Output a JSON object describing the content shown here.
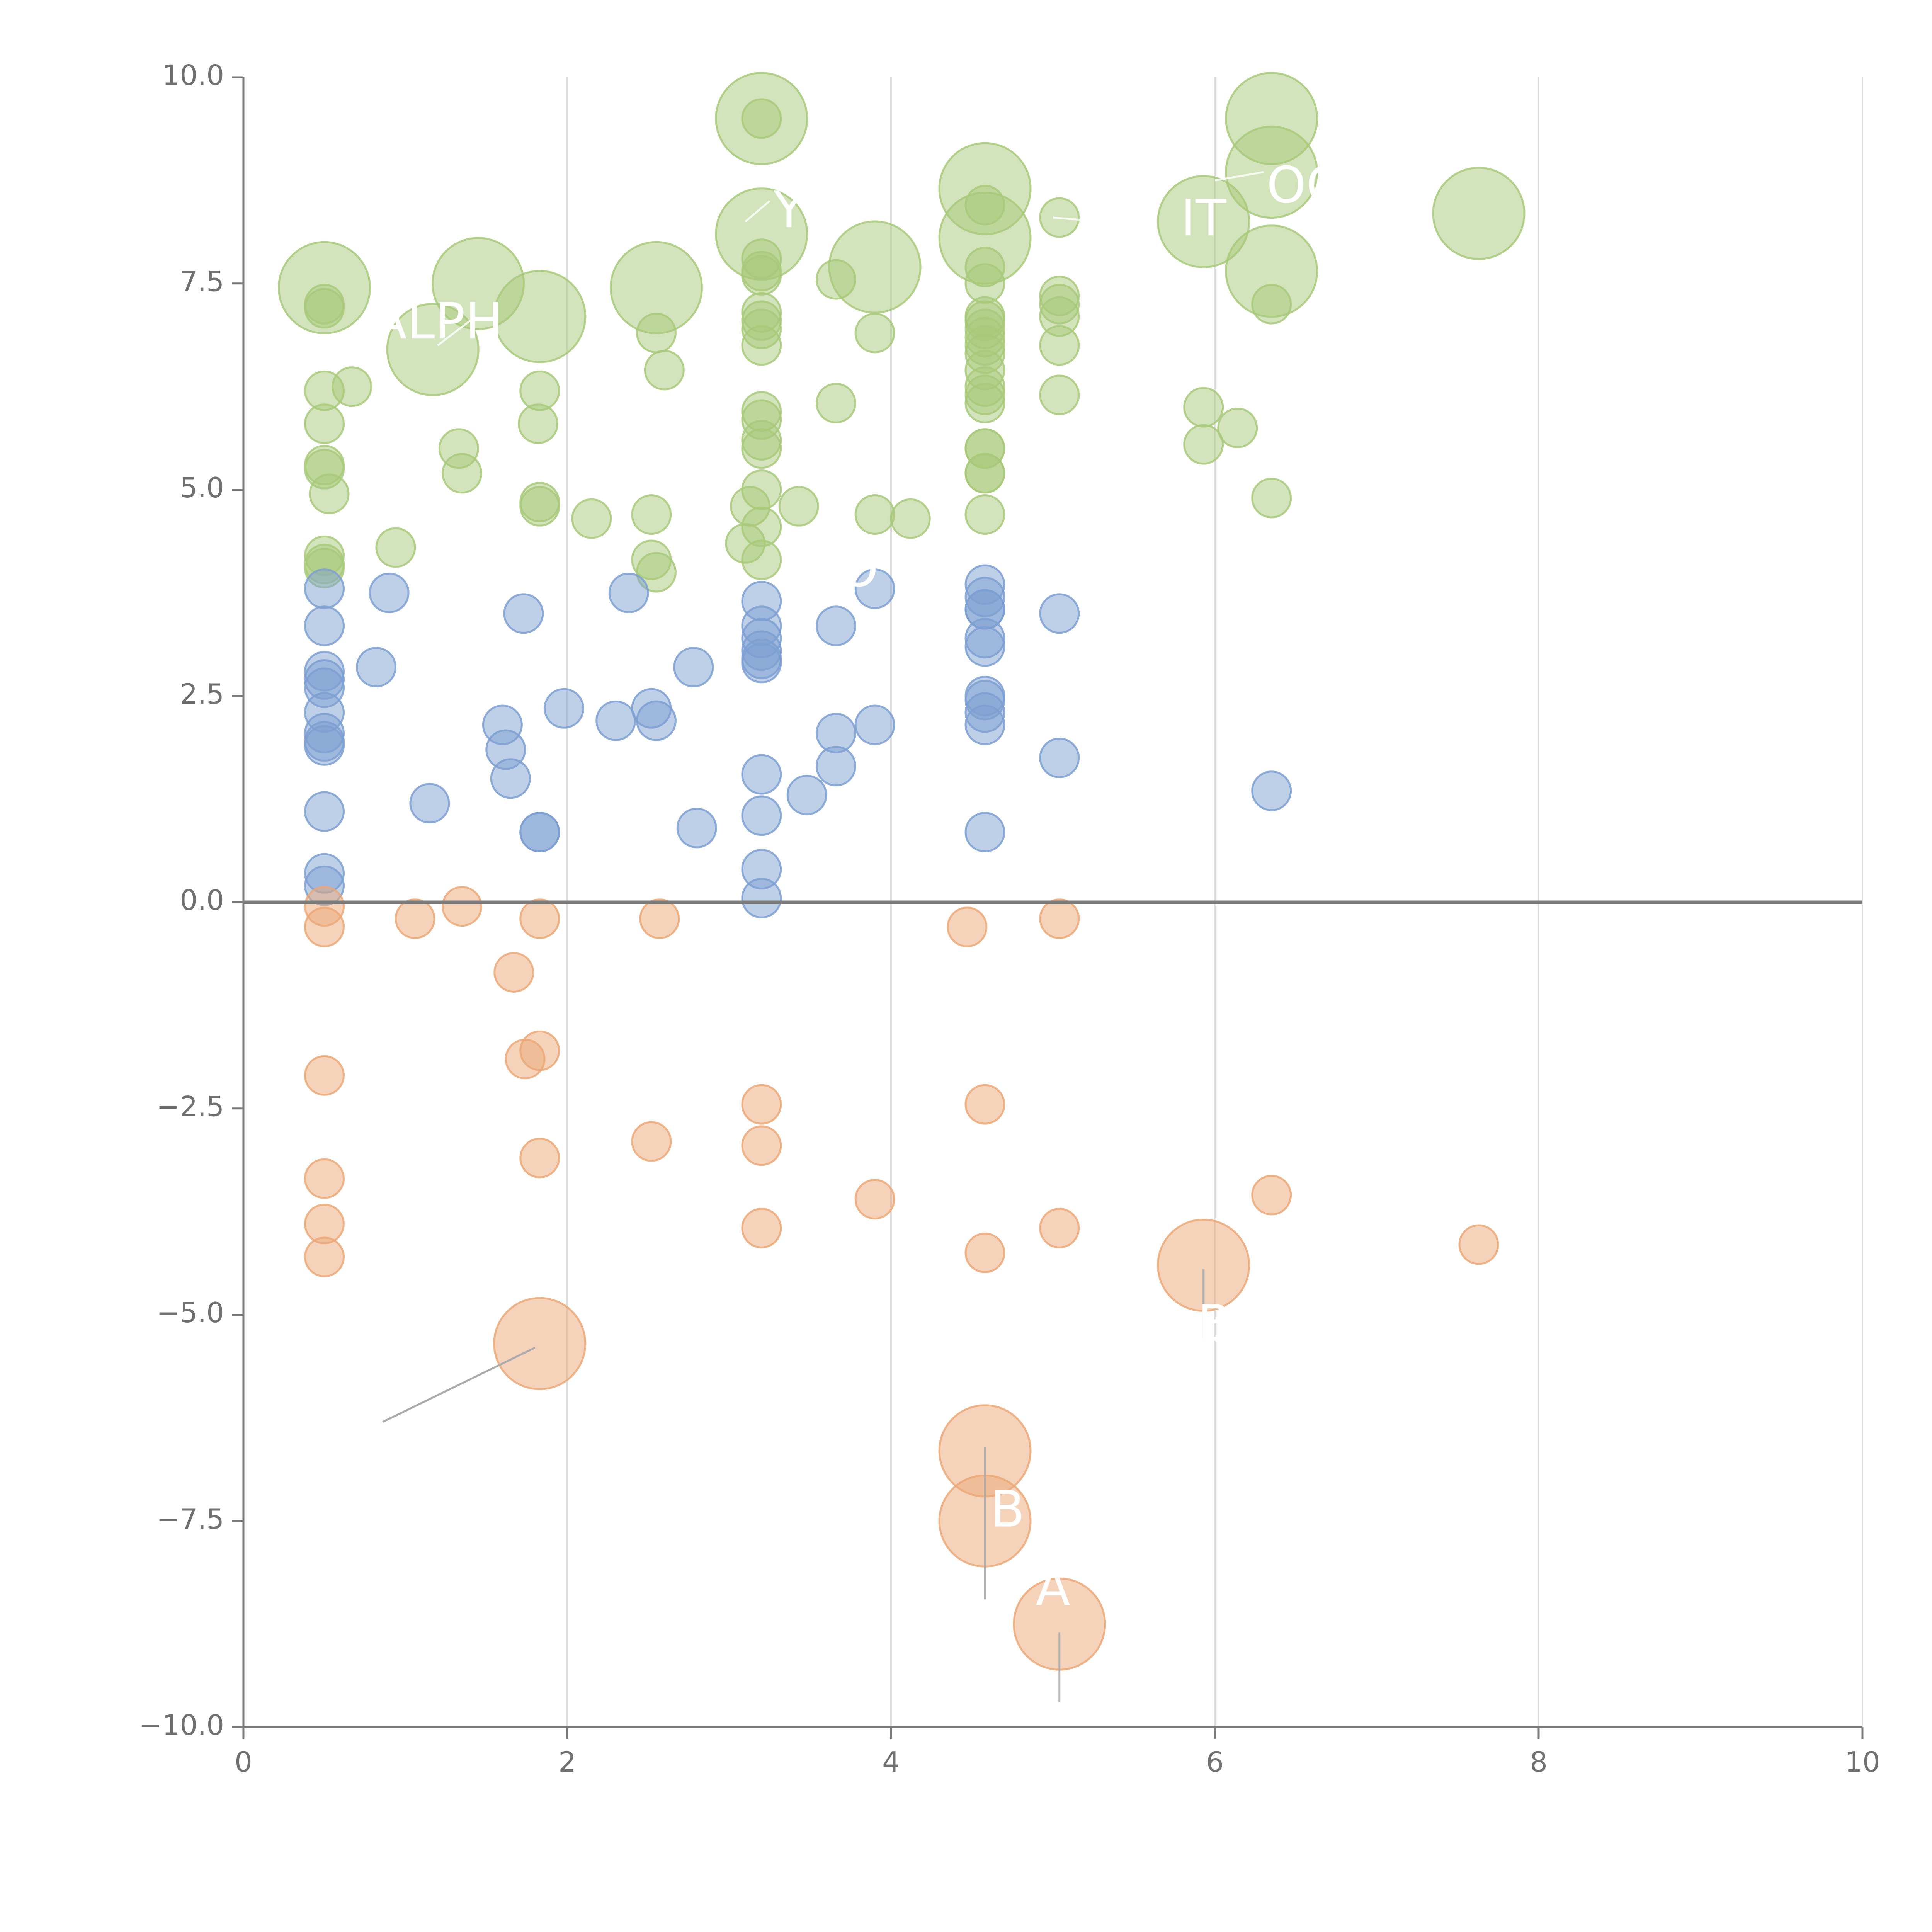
{
  "chart_data": {
    "type": "scatter",
    "title": "",
    "xlabel": "",
    "ylabel": "",
    "xlim": [
      0,
      10
    ],
    "ylim": [
      -10,
      10
    ],
    "x_ticks": [
      0,
      2,
      4,
      6,
      8,
      10
    ],
    "x_tick_labels": [
      "0",
      "2",
      "4",
      "6",
      "8",
      "10"
    ],
    "y_ticks": [
      -10,
      -7.5,
      -5,
      -2.5,
      0,
      2.5,
      5,
      7.5,
      10
    ],
    "y_tick_labels": [
      "−10.0",
      "−7.5",
      "−5.0",
      "−2.5",
      "0.0",
      "2.5",
      "5.0",
      "7.5",
      "10.0"
    ],
    "grid": "vertical",
    "zero_line": true,
    "colors": {
      "positive-high": "#a8c97a",
      "positive-low": "#7d9fd1",
      "negative": "#eba877",
      "axis": "#7a7a7a",
      "grid": "#dddddd",
      "leader_light": "#ffffff",
      "leader_dark": "#aaaaaa"
    },
    "series": [
      {
        "name": "positive-high",
        "points": [
          [
            0.5,
            7.45,
            2
          ],
          [
            0.5,
            7.2,
            1
          ],
          [
            0.5,
            7.25,
            1
          ],
          [
            0.5,
            6.2,
            1
          ],
          [
            0.5,
            5.8,
            1
          ],
          [
            0.5,
            5.3,
            1
          ],
          [
            0.5,
            5.25,
            1
          ],
          [
            0.53,
            4.95,
            1
          ],
          [
            0.5,
            4.2,
            1
          ],
          [
            0.5,
            4.1,
            1
          ],
          [
            0.5,
            4.05,
            1
          ],
          [
            0.67,
            6.25,
            1
          ],
          [
            0.94,
            4.3,
            1
          ],
          [
            1.17,
            6.7,
            2
          ],
          [
            1.45,
            7.5,
            2
          ],
          [
            1.33,
            5.5,
            1
          ],
          [
            1.35,
            5.2,
            1
          ],
          [
            1.83,
            7.1,
            2
          ],
          [
            1.83,
            6.2,
            1
          ],
          [
            1.82,
            5.8,
            1
          ],
          [
            1.83,
            4.85,
            1
          ],
          [
            1.83,
            4.8,
            1
          ],
          [
            2.15,
            4.65,
            1
          ],
          [
            2.55,
            7.45,
            2
          ],
          [
            2.55,
            6.9,
            1
          ],
          [
            2.6,
            6.45,
            1
          ],
          [
            2.52,
            4.7,
            1
          ],
          [
            2.52,
            4.15,
            1
          ],
          [
            2.55,
            4.0,
            1
          ],
          [
            3.2,
            9.5,
            2
          ],
          [
            3.2,
            9.5,
            1
          ],
          [
            3.2,
            8.1,
            2
          ],
          [
            3.2,
            7.8,
            1
          ],
          [
            3.2,
            7.65,
            1
          ],
          [
            3.2,
            7.6,
            1
          ],
          [
            3.2,
            7.15,
            1
          ],
          [
            3.2,
            7.05,
            1
          ],
          [
            3.2,
            6.95,
            1
          ],
          [
            3.2,
            6.75,
            1
          ],
          [
            3.2,
            5.95,
            1
          ],
          [
            3.2,
            5.85,
            1
          ],
          [
            3.2,
            5.6,
            1
          ],
          [
            3.2,
            5.5,
            1
          ],
          [
            3.2,
            5.0,
            1
          ],
          [
            3.13,
            4.8,
            1
          ],
          [
            3.2,
            4.55,
            1
          ],
          [
            3.1,
            4.35,
            1
          ],
          [
            3.2,
            4.15,
            1
          ],
          [
            3.43,
            4.8,
            1
          ],
          [
            3.66,
            7.55,
            1
          ],
          [
            3.66,
            6.05,
            1
          ],
          [
            3.9,
            7.7,
            2
          ],
          [
            3.9,
            6.9,
            1
          ],
          [
            3.9,
            4.7,
            1
          ],
          [
            4.12,
            4.65,
            1
          ],
          [
            4.58,
            8.65,
            2
          ],
          [
            4.58,
            8.05,
            2
          ],
          [
            4.58,
            8.45,
            1
          ],
          [
            4.58,
            7.7,
            1
          ],
          [
            4.58,
            7.5,
            1
          ],
          [
            4.58,
            7.1,
            1
          ],
          [
            4.58,
            7.05,
            1
          ],
          [
            4.58,
            6.95,
            1
          ],
          [
            4.58,
            6.85,
            1
          ],
          [
            4.58,
            6.75,
            1
          ],
          [
            4.58,
            6.65,
            1
          ],
          [
            4.58,
            6.45,
            1
          ],
          [
            4.58,
            6.25,
            1
          ],
          [
            4.58,
            6.15,
            1
          ],
          [
            4.58,
            6.05,
            1
          ],
          [
            4.58,
            5.5,
            1
          ],
          [
            4.58,
            5.5,
            1
          ],
          [
            4.58,
            5.2,
            1
          ],
          [
            4.58,
            5.2,
            1
          ],
          [
            4.58,
            4.7,
            1
          ],
          [
            5.04,
            8.3,
            1
          ],
          [
            5.04,
            7.35,
            1
          ],
          [
            5.04,
            7.25,
            1
          ],
          [
            5.04,
            7.1,
            1
          ],
          [
            5.04,
            6.75,
            1
          ],
          [
            5.04,
            6.15,
            1
          ],
          [
            5.93,
            8.25,
            2
          ],
          [
            5.93,
            6.0,
            1
          ],
          [
            5.93,
            5.55,
            1
          ],
          [
            6.14,
            5.75,
            1
          ],
          [
            6.35,
            9.5,
            2
          ],
          [
            6.35,
            8.85,
            2
          ],
          [
            6.35,
            7.65,
            2
          ],
          [
            6.35,
            7.25,
            1
          ],
          [
            6.35,
            4.9,
            1
          ],
          [
            7.63,
            8.35,
            2
          ]
        ]
      },
      {
        "name": "positive-low",
        "points": [
          [
            0.5,
            3.8,
            1
          ],
          [
            0.5,
            3.35,
            1
          ],
          [
            0.5,
            2.8,
            1
          ],
          [
            0.5,
            2.7,
            1
          ],
          [
            0.5,
            2.6,
            1
          ],
          [
            0.5,
            2.3,
            1
          ],
          [
            0.5,
            2.05,
            1
          ],
          [
            0.5,
            1.95,
            1
          ],
          [
            0.5,
            1.9,
            1
          ],
          [
            0.5,
            1.1,
            1
          ],
          [
            0.5,
            0.35,
            1
          ],
          [
            0.5,
            0.2,
            1
          ],
          [
            0.82,
            2.85,
            1
          ],
          [
            0.9,
            3.75,
            1
          ],
          [
            1.15,
            1.2,
            1
          ],
          [
            1.6,
            2.15,
            1
          ],
          [
            1.62,
            1.85,
            1
          ],
          [
            1.65,
            1.5,
            1
          ],
          [
            1.73,
            3.5,
            1
          ],
          [
            1.83,
            0.85,
            1
          ],
          [
            1.83,
            0.85,
            1
          ],
          [
            1.98,
            2.35,
            1
          ],
          [
            2.3,
            2.2,
            1
          ],
          [
            2.38,
            3.75,
            1
          ],
          [
            2.52,
            2.35,
            1
          ],
          [
            2.55,
            2.2,
            1
          ],
          [
            2.78,
            2.85,
            1
          ],
          [
            2.8,
            0.9,
            1
          ],
          [
            3.2,
            3.65,
            1
          ],
          [
            3.2,
            3.35,
            1
          ],
          [
            3.2,
            3.2,
            1
          ],
          [
            3.2,
            3.05,
            1
          ],
          [
            3.2,
            2.95,
            1
          ],
          [
            3.2,
            2.9,
            1
          ],
          [
            3.2,
            1.55,
            1
          ],
          [
            3.2,
            1.05,
            1
          ],
          [
            3.2,
            0.4,
            1
          ],
          [
            3.2,
            0.05,
            1
          ],
          [
            3.48,
            1.3,
            1
          ],
          [
            3.66,
            3.35,
            1
          ],
          [
            3.66,
            2.05,
            1
          ],
          [
            3.66,
            1.65,
            1
          ],
          [
            3.9,
            3.8,
            1
          ],
          [
            3.9,
            2.15,
            1
          ],
          [
            4.58,
            3.85,
            1
          ],
          [
            4.58,
            3.7,
            1
          ],
          [
            4.58,
            3.55,
            1
          ],
          [
            4.58,
            3.55,
            1
          ],
          [
            4.58,
            3.2,
            1
          ],
          [
            4.58,
            3.1,
            1
          ],
          [
            4.58,
            2.5,
            1
          ],
          [
            4.58,
            2.45,
            1
          ],
          [
            4.58,
            2.3,
            1
          ],
          [
            4.58,
            2.15,
            1
          ],
          [
            4.58,
            0.85,
            1
          ],
          [
            5.04,
            3.5,
            1
          ],
          [
            5.04,
            1.75,
            1
          ],
          [
            6.35,
            1.35,
            1
          ]
        ]
      },
      {
        "name": "negative",
        "points": [
          [
            0.5,
            -0.05,
            1
          ],
          [
            0.5,
            -0.3,
            1
          ],
          [
            0.5,
            -2.1,
            1
          ],
          [
            0.5,
            -3.35,
            1
          ],
          [
            0.5,
            -3.9,
            1
          ],
          [
            0.5,
            -4.3,
            1
          ],
          [
            1.06,
            -0.2,
            1
          ],
          [
            1.35,
            -0.05,
            1
          ],
          [
            1.67,
            -0.85,
            1
          ],
          [
            1.74,
            -1.9,
            1
          ],
          [
            1.83,
            -1.8,
            1
          ],
          [
            1.83,
            -0.2,
            1
          ],
          [
            1.83,
            -3.1,
            1
          ],
          [
            1.83,
            -5.35,
            2
          ],
          [
            2.52,
            -2.9,
            1
          ],
          [
            2.57,
            -0.2,
            1
          ],
          [
            3.2,
            -2.45,
            1
          ],
          [
            3.2,
            -2.95,
            1
          ],
          [
            3.2,
            -3.95,
            1
          ],
          [
            3.9,
            -3.6,
            1
          ],
          [
            4.47,
            -0.3,
            1
          ],
          [
            4.58,
            -2.45,
            1
          ],
          [
            4.58,
            -4.25,
            1
          ],
          [
            4.58,
            -6.65,
            2
          ],
          [
            4.58,
            -7.5,
            2
          ],
          [
            5.04,
            -0.2,
            1
          ],
          [
            5.04,
            -3.95,
            1
          ],
          [
            5.04,
            -8.75,
            2
          ],
          [
            5.93,
            -4.4,
            2
          ],
          [
            6.35,
            -3.55,
            1
          ],
          [
            7.63,
            -4.15,
            1
          ]
        ]
      }
    ],
    "annotations": [
      {
        "text": "ALPH",
        "at": [
          1.17,
          6.7
        ],
        "label_at": [
          1.2,
          7.0
        ],
        "leader": [
          [
            1.4,
            7.05
          ],
          [
            1.2,
            6.75
          ]
        ]
      },
      {
        "text": "Y",
        "at": [
          3.2,
          8.1
        ],
        "label_at": [
          3.37,
          8.35
        ],
        "leader": [
          [
            3.1,
            8.25
          ],
          [
            3.25,
            8.5
          ]
        ]
      },
      {
        "text": "IT",
        "at": [
          5.93,
          8.25
        ],
        "label_at": [
          5.93,
          8.25
        ],
        "leader": [
          [
            5.0,
            8.3
          ],
          [
            5.6,
            8.2
          ]
        ]
      },
      {
        "text": "OC",
        "at": [
          6.35,
          8.85
        ],
        "label_at": [
          6.55,
          8.65
        ],
        "leader": [
          [
            6.0,
            8.75
          ],
          [
            6.3,
            8.85
          ]
        ]
      },
      {
        "text": "O",
        "at": [
          3.9,
          3.8
        ],
        "label_at": [
          3.8,
          4.0
        ],
        "leader": [
          [
            3.75,
            4.15
          ],
          [
            3.85,
            4.25
          ]
        ]
      },
      {
        "text": "B",
        "at": [
          4.58,
          -7.5
        ],
        "label_at": [
          4.72,
          -7.4
        ],
        "leader": [
          [
            4.58,
            -6.6
          ],
          [
            4.58,
            -8.45
          ]
        ]
      },
      {
        "text": "A",
        "at": [
          5.04,
          -8.75
        ],
        "label_at": [
          5.0,
          -8.35
        ],
        "leader": [
          [
            5.04,
            -8.85
          ],
          [
            5.04,
            -9.7
          ]
        ]
      },
      {
        "text": "B",
        "at": [
          5.93,
          -4.4
        ],
        "label_at": [
          6.0,
          -5.15
        ],
        "leader": [
          [
            5.93,
            -4.45
          ],
          [
            5.93,
            -5.3
          ]
        ]
      }
    ]
  }
}
